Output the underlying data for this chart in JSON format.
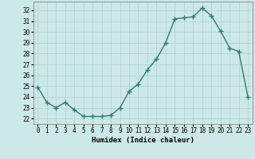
{
  "x": [
    0,
    1,
    2,
    3,
    4,
    5,
    6,
    7,
    8,
    9,
    10,
    11,
    12,
    13,
    14,
    15,
    16,
    17,
    18,
    19,
    20,
    21,
    22,
    23
  ],
  "y": [
    24.9,
    23.5,
    23.0,
    23.5,
    22.8,
    22.2,
    22.2,
    22.2,
    22.3,
    23.0,
    24.5,
    25.2,
    26.5,
    27.5,
    29.0,
    31.2,
    31.3,
    31.4,
    32.2,
    31.5,
    30.1,
    28.5,
    28.2,
    24.0
  ],
  "xlim": [
    -0.5,
    23.5
  ],
  "ylim": [
    21.5,
    32.8
  ],
  "yticks": [
    22,
    23,
    24,
    25,
    26,
    27,
    28,
    29,
    30,
    31,
    32
  ],
  "xticks": [
    0,
    1,
    2,
    3,
    4,
    5,
    6,
    7,
    8,
    9,
    10,
    11,
    12,
    13,
    14,
    15,
    16,
    17,
    18,
    19,
    20,
    21,
    22,
    23
  ],
  "xlabel": "Humidex (Indice chaleur)",
  "line_color": "#2e7d6e",
  "marker": "+",
  "background_color": "#cce8e8",
  "grid_color": "#afd0d0",
  "tick_fontsize": 5.5,
  "xlabel_fontsize": 6.5,
  "linewidth": 1.0,
  "markersize": 4,
  "markeredgewidth": 1.0
}
